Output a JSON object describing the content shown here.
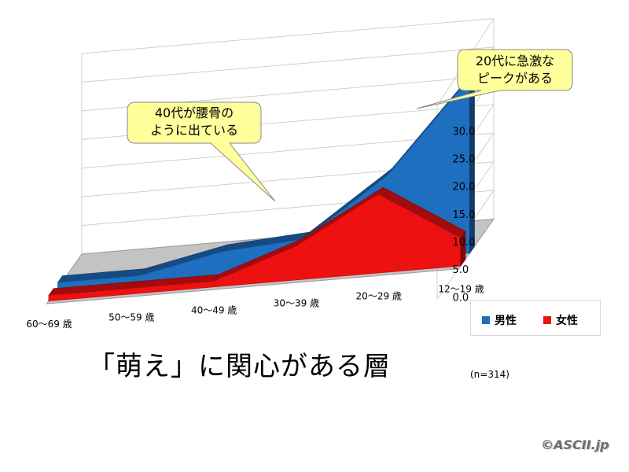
{
  "chart_data": {
    "type": "area",
    "view": "3d",
    "categories": [
      "60〜69 歳",
      "50〜59 歳",
      "40〜49 歳",
      "30〜39 歳",
      "20〜29 歳",
      "12〜19 歳"
    ],
    "series": [
      {
        "name": "男性",
        "color": "#1e6fc0",
        "values": [
          1.0,
          1.0,
          4.0,
          5.0,
          15.0,
          31.0
        ]
      },
      {
        "name": "女性",
        "color": "#ee1111",
        "values": [
          1.0,
          1.0,
          1.0,
          6.0,
          14.0,
          5.0
        ]
      }
    ],
    "yticks": [
      "0.0",
      "5.0",
      "10.0",
      "15.0",
      "20.0",
      "25.0",
      "30.0"
    ],
    "ylim": [
      0,
      30
    ],
    "grid": true,
    "legend_position": "bottom-right",
    "title": "「萌え」に関心がある層",
    "note": "(n=314)"
  },
  "callouts": [
    {
      "lines": [
        "40代が腰骨の",
        "ように出ている"
      ]
    },
    {
      "lines": [
        "20代に急激な",
        "ピークがある"
      ]
    }
  ],
  "logo_text": "©ASCII.jp"
}
